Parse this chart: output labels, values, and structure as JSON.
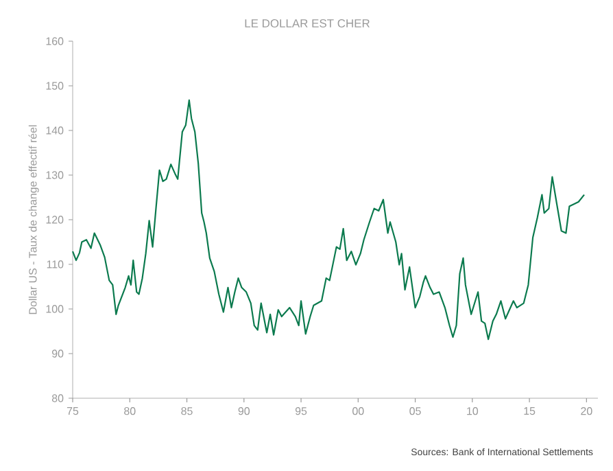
{
  "chart_data": {
    "type": "line",
    "title": "LE DOLLAR EST CHER",
    "ylabel": "Dollar US - Taux de change effectif réel",
    "annotations": [
      "Sources: Bank of International Settlements"
    ],
    "x": [
      1975,
      1975.3,
      1975.6,
      1975.8,
      1976.2,
      1976.6,
      1976.9,
      1977.4,
      1977.8,
      1978.2,
      1978.5,
      1978.8,
      1979,
      1979.6,
      1979.9,
      1980.1,
      1980.3,
      1980.6,
      1980.8,
      1981.1,
      1981.4,
      1981.7,
      1982,
      1982.3,
      1982.6,
      1982.9,
      1983.2,
      1983.6,
      1984,
      1984.2,
      1984.6,
      1984.9,
      1985.2,
      1985.4,
      1985.7,
      1986,
      1986.3,
      1986.5,
      1986.7,
      1987,
      1987.4,
      1987.8,
      1988.2,
      1988.6,
      1988.9,
      1989.2,
      1989.5,
      1989.8,
      1990.2,
      1990.6,
      1990.9,
      1991.2,
      1991.5,
      1992,
      1992.3,
      1992.6,
      1993,
      1993.3,
      1994,
      1994.5,
      1994.8,
      1995,
      1995.4,
      1995.8,
      1996.1,
      1996.8,
      1997.2,
      1997.5,
      1998.1,
      1998.4,
      1998.7,
      1999,
      1999.4,
      1999.8,
      2000.2,
      2000.5,
      2001,
      2001.4,
      2001.8,
      2002.2,
      2002.6,
      2002.8,
      2003.3,
      2003.6,
      2003.8,
      2004.1,
      2004.5,
      2005,
      2005.4,
      2005.7,
      2005.9,
      2006.3,
      2006.6,
      2007.1,
      2007.6,
      2008,
      2008.3,
      2008.6,
      2008.9,
      2009.2,
      2009.4,
      2009.9,
      2010.5,
      2010.8,
      2011.1,
      2011.4,
      2011.8,
      2012.1,
      2012.5,
      2012.9,
      2013.6,
      2013.9,
      2014.5,
      2014.9,
      2015.3,
      2015.7,
      2016.1,
      2016.3,
      2016.7,
      2017,
      2017.4,
      2017.8,
      2018.2,
      2018.5,
      2018.9,
      2019.3,
      2019.8
    ],
    "series": [
      {
        "color": "#0b7a4e",
        "values": [
          112.9,
          110.9,
          112.6,
          115,
          115.5,
          113.6,
          117,
          114.4,
          111.6,
          106.4,
          105.4,
          98.8,
          100.8,
          104.8,
          107.4,
          105.4,
          110.9,
          103.8,
          103.3,
          106.9,
          112.4,
          119.8,
          113.9,
          122.7,
          131.1,
          128.6,
          129.1,
          132.4,
          130.1,
          129.1,
          139.7,
          141.2,
          146.8,
          142.7,
          139.7,
          132.6,
          121.5,
          119.5,
          117,
          111.4,
          108.4,
          103.3,
          99.3,
          104.8,
          100.3,
          103.8,
          106.9,
          104.8,
          103.8,
          101.3,
          96.3,
          95.3,
          101.3,
          94.7,
          98.8,
          94.2,
          99.8,
          98.3,
          100.3,
          98.3,
          96.3,
          101.8,
          94.4,
          98.3,
          100.8,
          101.8,
          106.9,
          106.4,
          113.9,
          113.4,
          118,
          110.9,
          112.9,
          109.9,
          112.4,
          115.5,
          119.5,
          122.5,
          122,
          124.5,
          117,
          119.5,
          115,
          109.9,
          112.4,
          104.3,
          109.4,
          100.3,
          102.8,
          105.9,
          107.4,
          104.8,
          103.3,
          103.8,
          100.3,
          96.3,
          93.7,
          96.3,
          107.9,
          111.4,
          105.4,
          98.8,
          103.8,
          97.3,
          96.8,
          93.2,
          97.3,
          98.8,
          101.8,
          97.8,
          101.8,
          100.3,
          101.3,
          105.4,
          116,
          120.5,
          125.6,
          121.5,
          122.5,
          129.6,
          123.5,
          117.5,
          117,
          123,
          123.5,
          124,
          125.6
        ]
      }
    ],
    "xlim": [
      1975,
      2021
    ],
    "ylim": [
      80,
      160
    ],
    "xticks": [
      {
        "value": 1975,
        "label": "75"
      },
      {
        "value": 1980,
        "label": "80"
      },
      {
        "value": 1985,
        "label": "85"
      },
      {
        "value": 1990,
        "label": "90"
      },
      {
        "value": 1995,
        "label": "95"
      },
      {
        "value": 2000,
        "label": "00"
      },
      {
        "value": 2005,
        "label": "05"
      },
      {
        "value": 2010,
        "label": "10"
      },
      {
        "value": 2015,
        "label": "15"
      },
      {
        "value": 2020,
        "label": "20"
      }
    ],
    "yticks": [
      80,
      90,
      100,
      110,
      120,
      130,
      140,
      150,
      160
    ]
  }
}
